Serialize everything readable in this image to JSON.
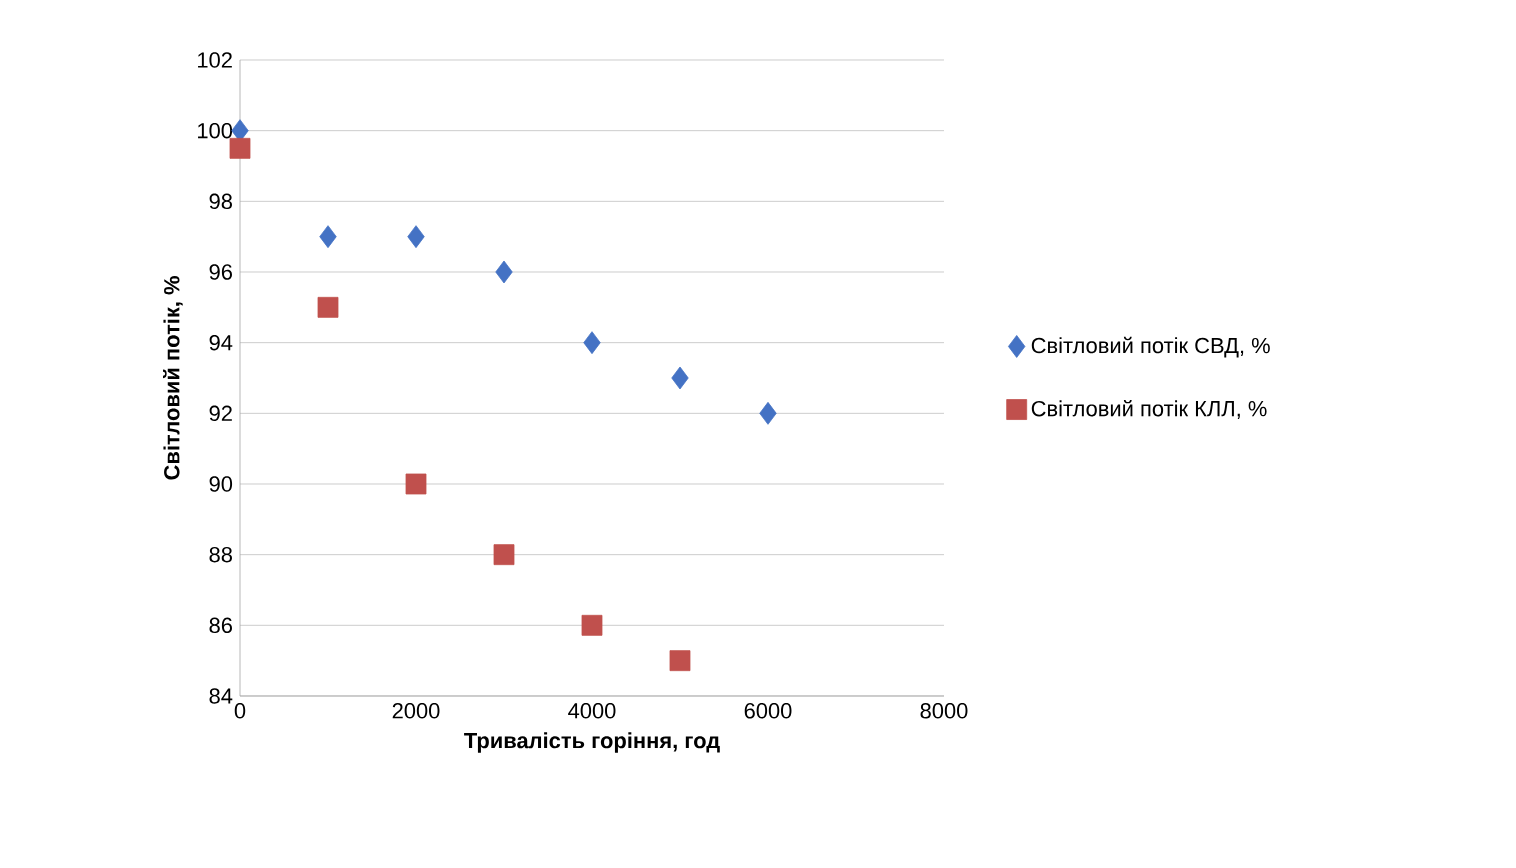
{
  "chart_data": {
    "type": "scatter",
    "xlabel": "Тривалість горіння, год",
    "ylabel": "Світловий потік, %",
    "xlim": [
      0,
      8000
    ],
    "xticks": [
      0,
      2000,
      4000,
      6000,
      8000
    ],
    "ylim": [
      84,
      102
    ],
    "yticks": [
      84,
      86,
      88,
      90,
      92,
      94,
      96,
      98,
      100,
      102
    ],
    "grid": "y",
    "legend": "right",
    "series": [
      {
        "name": "Світловий потік СВД, %",
        "color": "#4472c4",
        "marker": "diamond",
        "x": [
          0,
          1000,
          2000,
          3000,
          4000,
          5000,
          6000
        ],
        "values": [
          100,
          97,
          97,
          96,
          94,
          93,
          92
        ]
      },
      {
        "name": "Світловий потік КЛЛ, %",
        "color": "#c0504d",
        "marker": "square",
        "x": [
          0,
          1000,
          2000,
          3000,
          4000,
          5000
        ],
        "values": [
          99.5,
          95,
          90,
          88,
          86,
          85
        ]
      }
    ]
  }
}
